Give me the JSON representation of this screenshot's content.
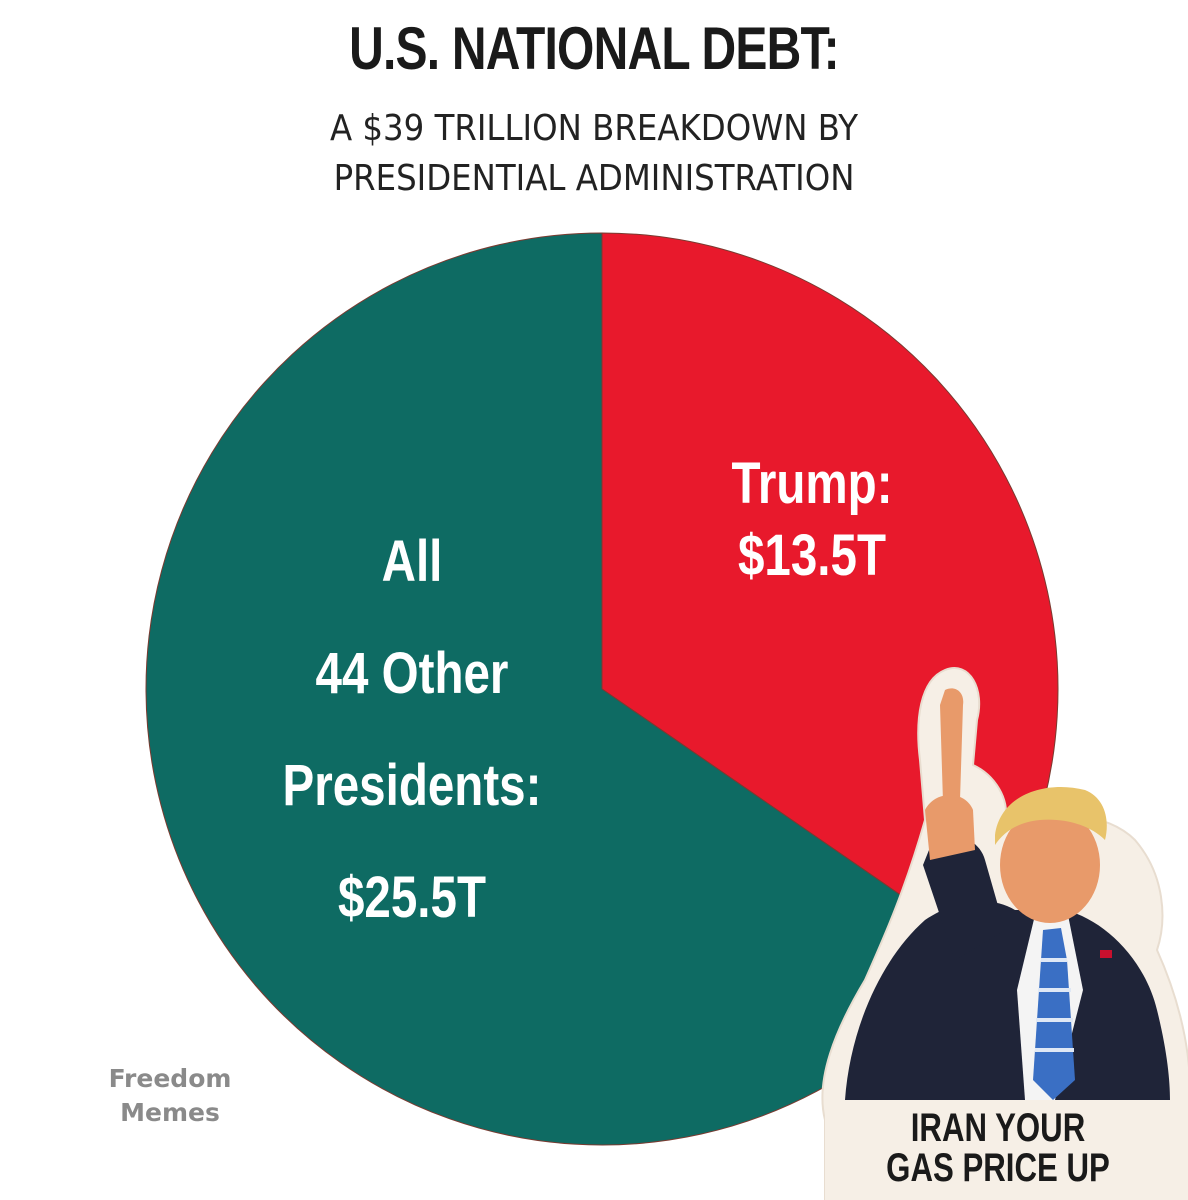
{
  "chart_data": {
    "type": "pie",
    "title": "U.S. NATIONAL DEBT:",
    "subtitle_lines": [
      "A $39 TRILLION BREAKDOWN BY",
      "PRESIDENTIAL ADMINISTRATION"
    ],
    "slices": [
      {
        "name": "Trump",
        "value": 13.5,
        "label_lines": [
          "Trump:",
          "$13.5T"
        ],
        "color": "#e8192c"
      },
      {
        "name": "All 44 Other Presidents",
        "value": 25.5,
        "label_lines": [
          "All",
          "44 Other",
          "Presidents:",
          "$25.5T"
        ],
        "color": "#0e6b63"
      }
    ],
    "start_angle": "12 o'clock",
    "direction": "clockwise",
    "legend": "none"
  },
  "watermark": {
    "lines": [
      "Freedom",
      "Memes"
    ]
  },
  "sticker": {
    "caption_lines": [
      "IRAN YOUR",
      "GAS PRICE UP"
    ],
    "icon": "pointing-figure-icon"
  }
}
